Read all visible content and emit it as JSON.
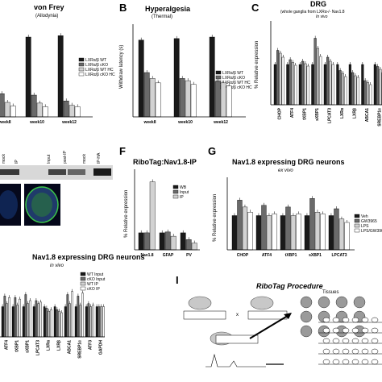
{
  "panelA": {
    "title": "von Frey",
    "subtitle": "(Allodynia)",
    "categories": [
      "week8",
      "week10",
      "week12"
    ],
    "legend": [
      "LXRα/β WT",
      "LXRα/β cKO",
      "LXRα/β WT HC",
      "LXRα/β cKO HC"
    ],
    "colors": [
      "#1a1a1a",
      "#6a6a6a",
      "#d2d2d2",
      "#ffffff"
    ],
    "values": [
      [
        10.4,
        3.2,
        2.0,
        1.5
      ],
      [
        11.0,
        3.0,
        1.9,
        1.4
      ],
      [
        11.2,
        2.2,
        1.6,
        1.4
      ]
    ]
  },
  "panelB": {
    "letter": "B",
    "title": "Hyperalgesia",
    "subtitle": "(Thermal)",
    "ylabel": "Withdraw latency (s)",
    "categories": [
      "week8",
      "week10",
      "week12"
    ],
    "legend": [
      "LXRα/β WT",
      "LXRα/β cKO",
      "LXRα/β WT HC",
      "LXRα/β cKO HC"
    ],
    "values": [
      [
        10.4,
        6.0,
        5.2,
        4.6
      ],
      [
        10.6,
        5.2,
        4.9,
        4.4
      ],
      [
        10.8,
        4.8,
        4.6,
        4.2
      ]
    ],
    "ylim": [
      0,
      12
    ]
  },
  "panelC": {
    "letter": "C",
    "title": "DRG",
    "subtitle": "(whole ganglia from LXRα-/- Nav1.8",
    "note": "In vivo",
    "ylabel": "% Relative expression",
    "categories": [
      "CHOP",
      "ATF4",
      "tXBP1",
      "sXBP1",
      "LPCAT3",
      "LXRα",
      "LXRβ",
      "ABCA1",
      "SREBP1c"
    ],
    "values": [
      [
        100,
        135,
        128,
        118
      ],
      [
        100,
        112,
        105,
        98
      ],
      [
        100,
        108,
        102,
        96
      ],
      [
        100,
        165,
        140,
        120
      ],
      [
        100,
        118,
        108,
        100
      ],
      [
        100,
        85,
        78,
        70
      ],
      [
        100,
        80,
        72,
        68
      ],
      [
        100,
        60,
        55,
        50
      ],
      [
        100,
        95,
        88,
        80
      ]
    ],
    "ylim": [
      0,
      200
    ]
  },
  "panelE": {
    "lanes": [
      "mock",
      "IP",
      "Input",
      "post-IP",
      "mock",
      "IP-HA"
    ]
  },
  "panelF": {
    "letter": "F",
    "title": "RiboTag:Nav1.8-IP",
    "ylabel": "% Relative expression",
    "categories": [
      "Nav1.8",
      "GFAP",
      "PV"
    ],
    "legend": [
      "WB",
      "Input",
      "IP"
    ],
    "values": [
      [
        100,
        100,
        400
      ],
      [
        100,
        105,
        80
      ],
      [
        100,
        60,
        40
      ]
    ],
    "ylim": [
      0,
      450
    ]
  },
  "panelG": {
    "letter": "G",
    "title": "Nav1.8 expressing DRG neurons",
    "note": "ex vivo",
    "ylabel": "% Relative expression",
    "categories": [
      "CHOP",
      "ATF4",
      "tXBP1",
      "sXBP1",
      "LPCAT3"
    ],
    "legend": [
      "Veh",
      "GW3965",
      "LPS",
      "LPS/GW3965"
    ],
    "values": [
      [
        100,
        145,
        125,
        110
      ],
      [
        100,
        130,
        100,
        105
      ],
      [
        100,
        125,
        100,
        105
      ],
      [
        100,
        150,
        110,
        105
      ],
      [
        100,
        120,
        90,
        80
      ]
    ],
    "ylim": [
      0,
      200
    ]
  },
  "panelH": {
    "title": "Nav1.8 expressing DRG neurons",
    "note": "in vivo",
    "categories": [
      "ATF4",
      "tXBP1",
      "sXBP1",
      "LPCAT3",
      "LXRα",
      "LXRβ",
      "ABCA1",
      "SREBP1c",
      "ATF3",
      "GAPDH"
    ],
    "legend": [
      "WT Input",
      "cKO Input",
      "WT IP",
      "cKO IP"
    ],
    "values": [
      [
        100,
        135,
        110,
        130
      ],
      [
        100,
        130,
        105,
        125
      ],
      [
        100,
        140,
        110,
        120
      ],
      [
        100,
        120,
        110,
        115
      ],
      [
        100,
        95,
        85,
        90
      ],
      [
        100,
        90,
        85,
        80
      ],
      [
        100,
        140,
        110,
        150
      ],
      [
        100,
        135,
        105,
        145
      ],
      [
        100,
        110,
        100,
        105
      ],
      [
        100,
        100,
        100,
        100
      ]
    ]
  },
  "panelI": {
    "letter": "I",
    "title": "RiboTag Procedure",
    "cross": "x",
    "tissues": "Tissues"
  }
}
